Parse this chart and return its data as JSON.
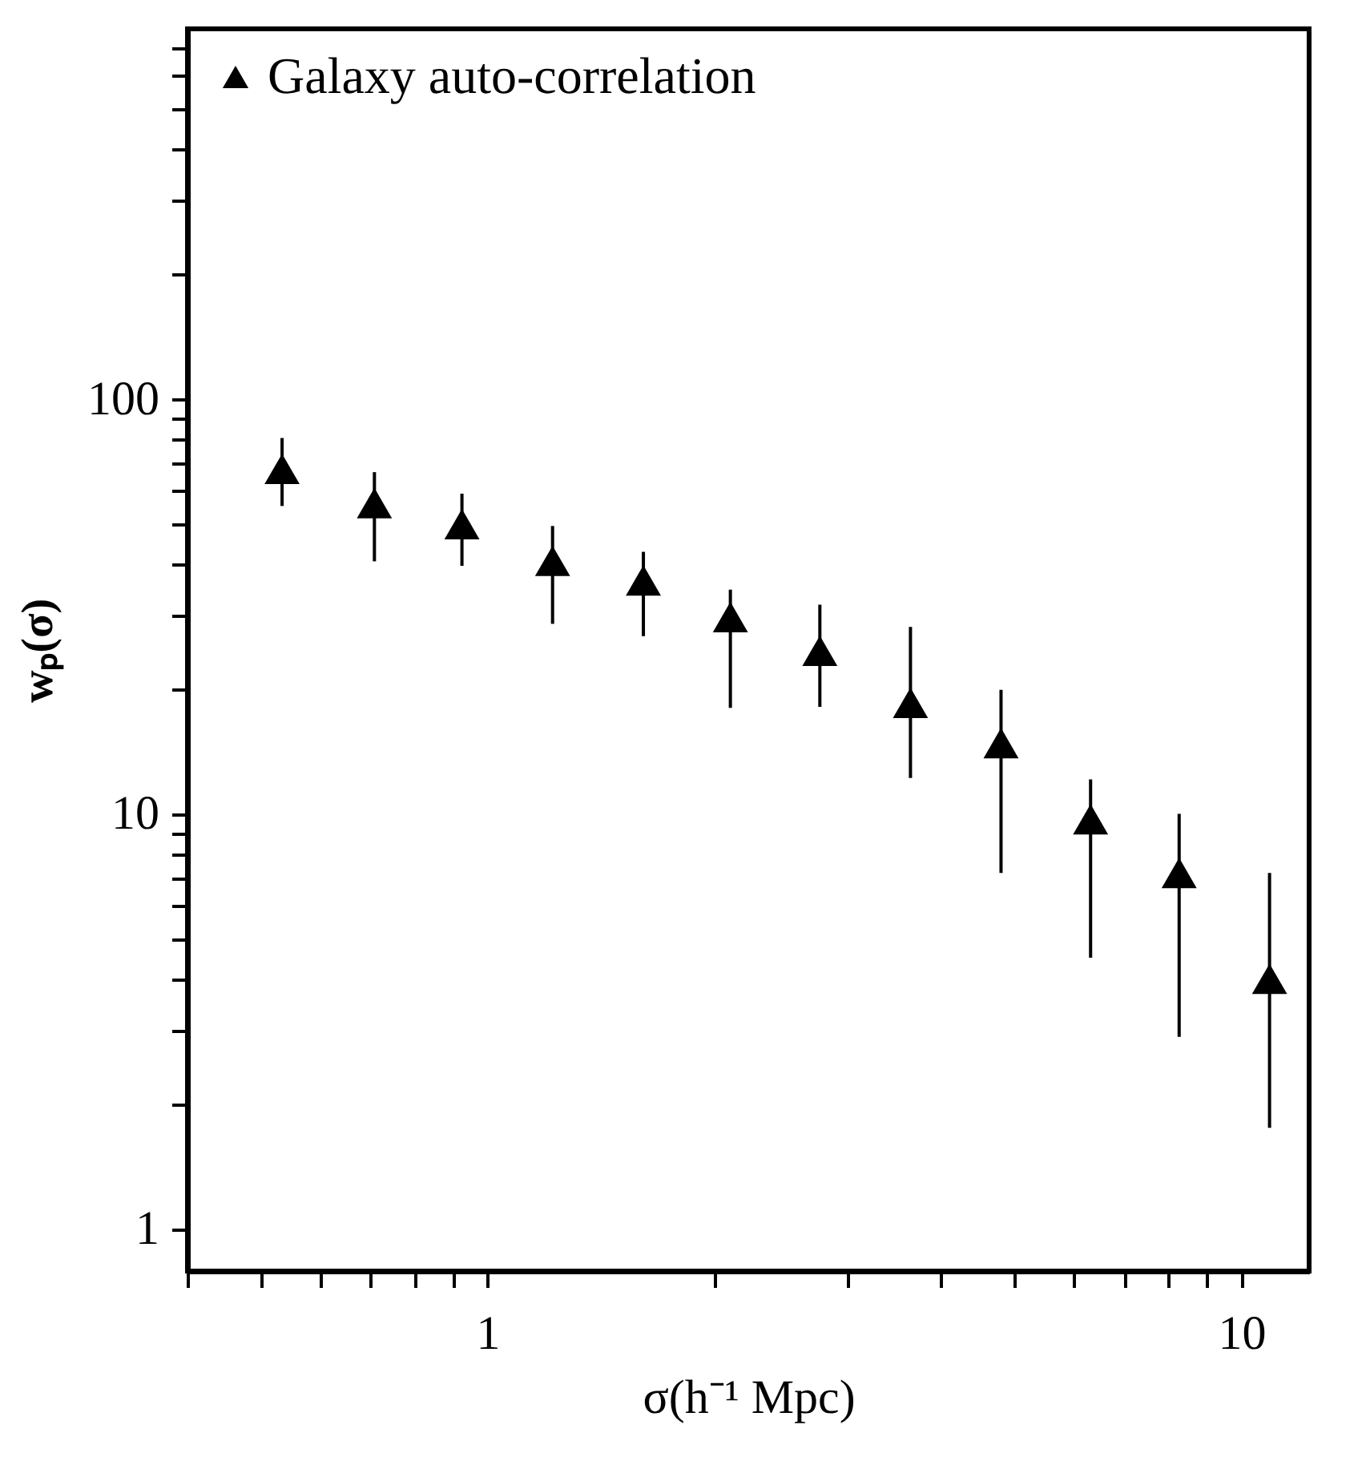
{
  "chart_data": {
    "type": "scatter",
    "xlabel": "σ(h⁻¹ Mpc)",
    "ylabel": "wₚ(σ)",
    "log": "xy",
    "marker": "triangle",
    "legend": "top left",
    "grid": false,
    "x": [
      0.534,
      0.708,
      0.925,
      1.22,
      1.61,
      2.1,
      2.76,
      3.64,
      4.8,
      6.31,
      8.27,
      10.9
    ],
    "series": [
      {
        "name": "Galaxy auto-correlation",
        "color": "#000000",
        "values": [
          67.8,
          56.1,
          49.9,
          40.7,
          36.5,
          29.8,
          24.7,
          18.5,
          14.8,
          9.7,
          7.2,
          4.0
        ],
        "errors": [
          [
            55.2,
            80.5
          ],
          [
            40.6,
            66.6
          ],
          [
            39.6,
            59.1
          ],
          [
            28.7,
            49.4
          ],
          [
            26.8,
            42.8
          ],
          [
            18.0,
            34.7
          ],
          [
            18.1,
            31.9
          ],
          [
            12.2,
            28.2
          ],
          [
            7.2,
            19.9
          ],
          [
            4.5,
            12.1
          ],
          [
            2.9,
            10.0
          ],
          [
            1.75,
            7.2
          ]
        ]
      }
    ],
    "xlim": [
      0.4,
      12.3
    ],
    "xticks": [
      {
        "value": 0.4,
        "label": null
      },
      {
        "value": 0.5,
        "label": null
      },
      {
        "value": 0.6,
        "label": null
      },
      {
        "value": 0.7,
        "label": null
      },
      {
        "value": 0.8,
        "label": null
      },
      {
        "value": 0.9,
        "label": null
      },
      1,
      {
        "value": 2,
        "label": null
      },
      {
        "value": 3,
        "label": null
      },
      {
        "value": 4,
        "label": null
      },
      {
        "value": 5,
        "label": null
      },
      {
        "value": 6,
        "label": null
      },
      {
        "value": 7,
        "label": null
      },
      {
        "value": 8,
        "label": null
      },
      {
        "value": 9,
        "label": null
      },
      10
    ],
    "ylim": [
      0.79,
      780
    ],
    "yticks": [
      1,
      {
        "value": 2,
        "label": null
      },
      {
        "value": 3,
        "label": null
      },
      {
        "value": 4,
        "label": null
      },
      {
        "value": 5,
        "label": null
      },
      {
        "value": 6,
        "label": null
      },
      {
        "value": 7,
        "label": null
      },
      {
        "value": 8,
        "label": null
      },
      {
        "value": 9,
        "label": null
      },
      10,
      {
        "value": 20,
        "label": null
      },
      {
        "value": 30,
        "label": null
      },
      {
        "value": 40,
        "label": null
      },
      {
        "value": 50,
        "label": null
      },
      {
        "value": 60,
        "label": null
      },
      {
        "value": 70,
        "label": null
      },
      {
        "value": 80,
        "label": null
      },
      {
        "value": 90,
        "label": null
      },
      100,
      {
        "value": 200,
        "label": null
      },
      {
        "value": 300,
        "label": null
      },
      {
        "value": 400,
        "label": null
      },
      {
        "value": 500,
        "label": null
      },
      {
        "value": 600,
        "label": null
      },
      {
        "value": 700,
        "label": null
      }
    ]
  }
}
